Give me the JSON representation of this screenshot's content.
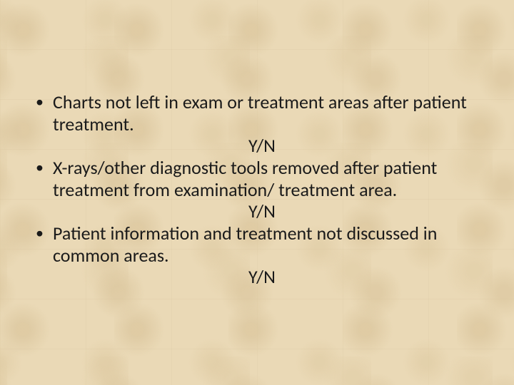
{
  "background_color": "#ead9b6",
  "text_color": "#1a1a1a",
  "font_family": "Calibri",
  "font_size_pt": 20,
  "items": [
    {
      "text": "Charts not left in exam or treatment areas after patient treatment.",
      "response": "Y/N"
    },
    {
      "text": "X-rays/other diagnostic tools removed after patient treatment from examination/ treatment area.",
      "response": "Y/N"
    },
    {
      "text": "Patient information and treatment not discussed in common areas.",
      "response": "Y/N"
    }
  ]
}
